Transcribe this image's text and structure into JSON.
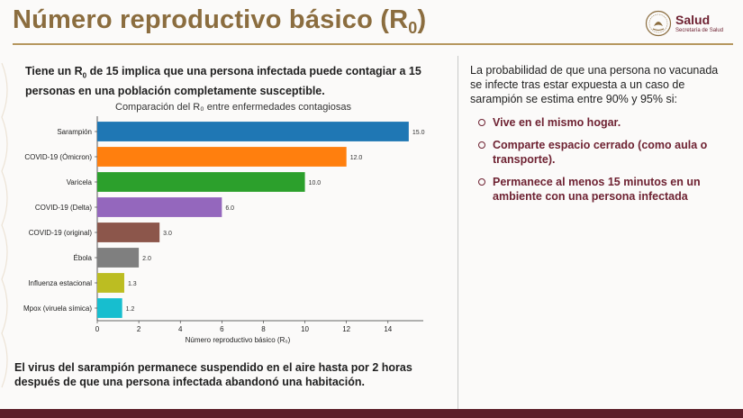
{
  "header": {
    "title_main": "Número reproductivo básico (R",
    "title_sub": "0",
    "title_close": ")",
    "logo_name": "Salud",
    "logo_sub": "Secretaría de Salud"
  },
  "lead": {
    "text_a": "Tiene un R",
    "text_sub": "0",
    "text_b": " de 15 implica que una persona infectada puede contagiar a 15 personas en una población completamente susceptible."
  },
  "chart_data": {
    "type": "bar",
    "orientation": "horizontal",
    "title": "Comparación del R₀ entre enfermedades contagiosas",
    "xlabel": "Número reproductivo básico (R₀)",
    "ylabel": "",
    "xlim": [
      0,
      15.7
    ],
    "xticks": [
      0,
      2,
      4,
      6,
      8,
      10,
      12,
      14
    ],
    "categories": [
      "Sarampión",
      "COVID-19 (Ómicron)",
      "Varicela",
      "COVID-19 (Delta)",
      "COVID-19 (original)",
      "Ébola",
      "Influenza estacional",
      "Mpox (viruela símica)"
    ],
    "values": [
      15.0,
      12.0,
      10.0,
      6.0,
      3.0,
      2.0,
      1.3,
      1.2
    ],
    "value_labels": [
      "15.0",
      "12.0",
      "10.0",
      "6.0",
      "3.0",
      "2.0",
      "1.3",
      "1.2"
    ],
    "colors": [
      "#1f77b4",
      "#ff7f0e",
      "#2ca02c",
      "#9467bd",
      "#8c564b",
      "#7f7f7f",
      "#bcbd22",
      "#17becf"
    ],
    "grid": false
  },
  "right": {
    "intro": "La probabilidad de que una persona no vacunada se infecte tras estar expuesta a un caso de sarampión se estima entre 90% y 95% si:",
    "bullets": [
      "Vive en el mismo hogar.",
      "Comparte espacio cerrado (como aula o transporte).",
      "Permanece al menos 15 minutos en un ambiente con una persona infectada"
    ]
  },
  "bottom": {
    "text": "El virus del sarampión permanece suspendido en el aire hasta por 2 horas después de que una persona infectada abandonó una habitación."
  }
}
